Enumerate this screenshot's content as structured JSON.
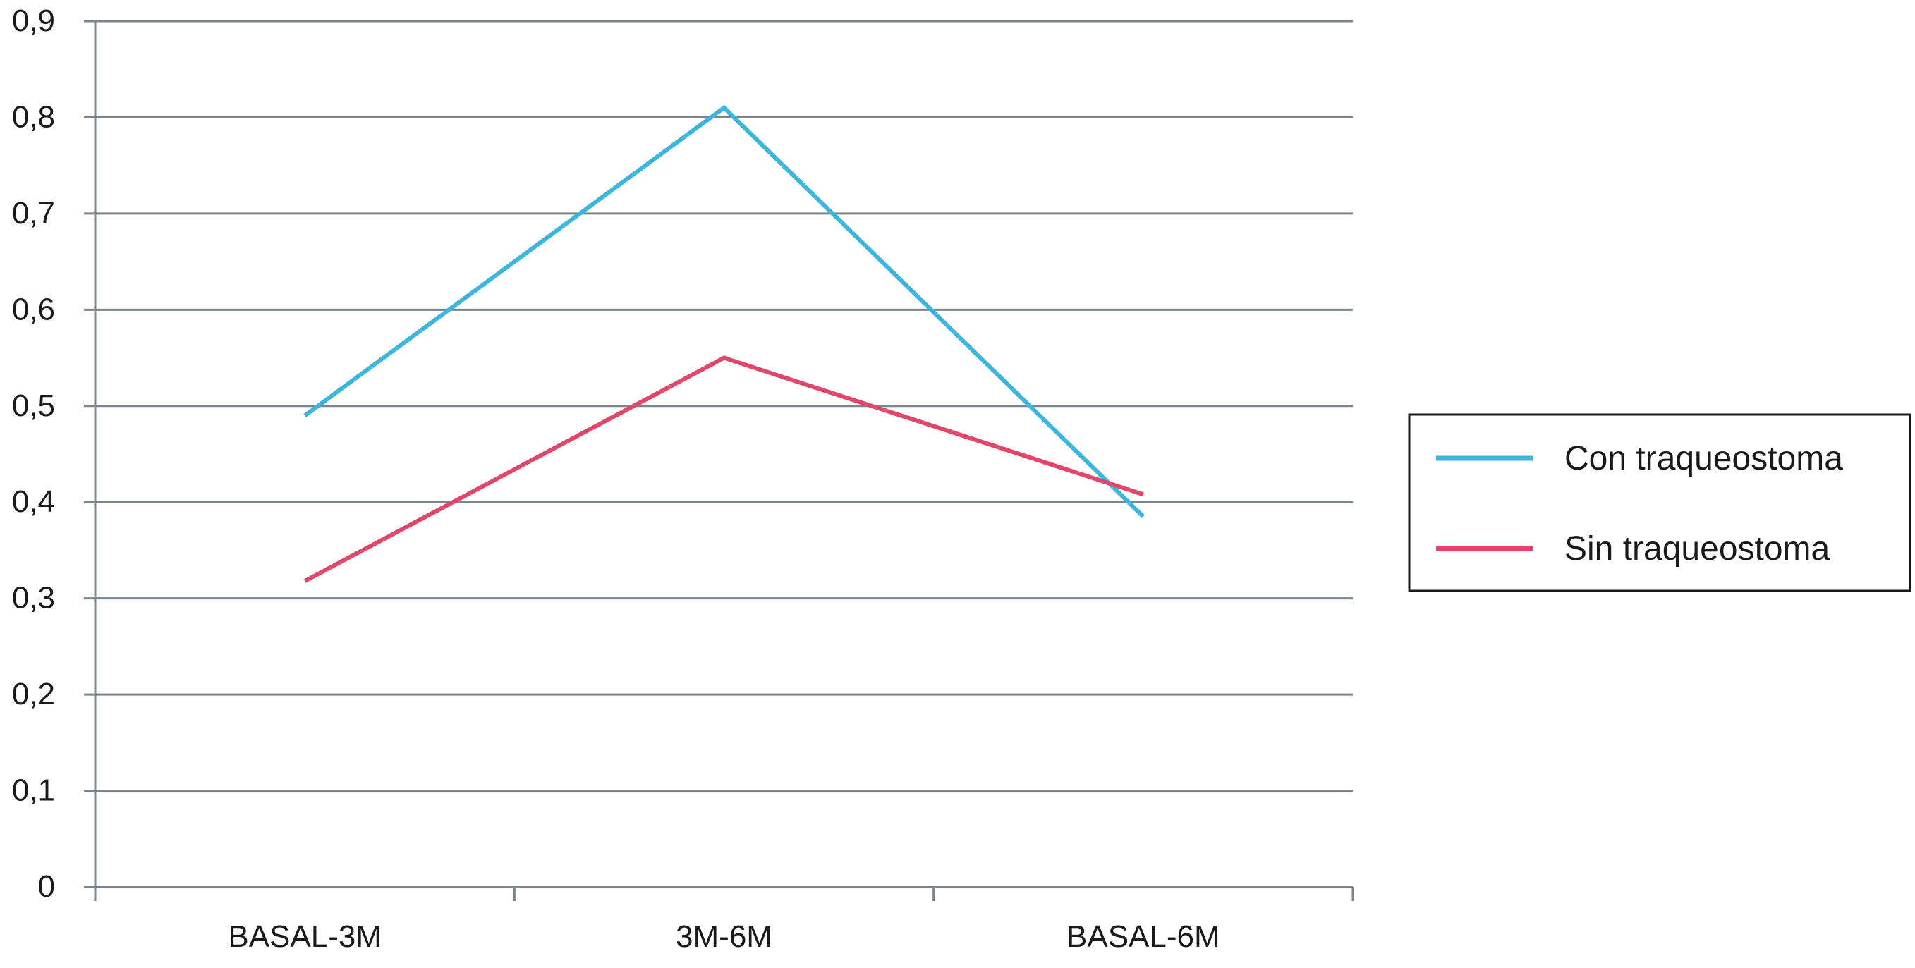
{
  "chart_data": {
    "type": "line",
    "title": "",
    "xlabel": "",
    "ylabel": "",
    "categories": [
      "BASAL-3M",
      "3M-6M",
      "BASAL-6M"
    ],
    "y_ticks": [
      "0",
      "0,1",
      "0,2",
      "0,3",
      "0,4",
      "0,5",
      "0,6",
      "0,7",
      "0,8",
      "0,9"
    ],
    "ylim": [
      0,
      0.9
    ],
    "grid": true,
    "legend_position": "right",
    "series": [
      {
        "name": "Con traqueostoma",
        "color": "#3cb6dc",
        "values": [
          0.49,
          0.81,
          0.385
        ]
      },
      {
        "name": "Sin traqueostoma",
        "color": "#e1476b",
        "values": [
          0.318,
          0.55,
          0.408
        ]
      }
    ]
  }
}
